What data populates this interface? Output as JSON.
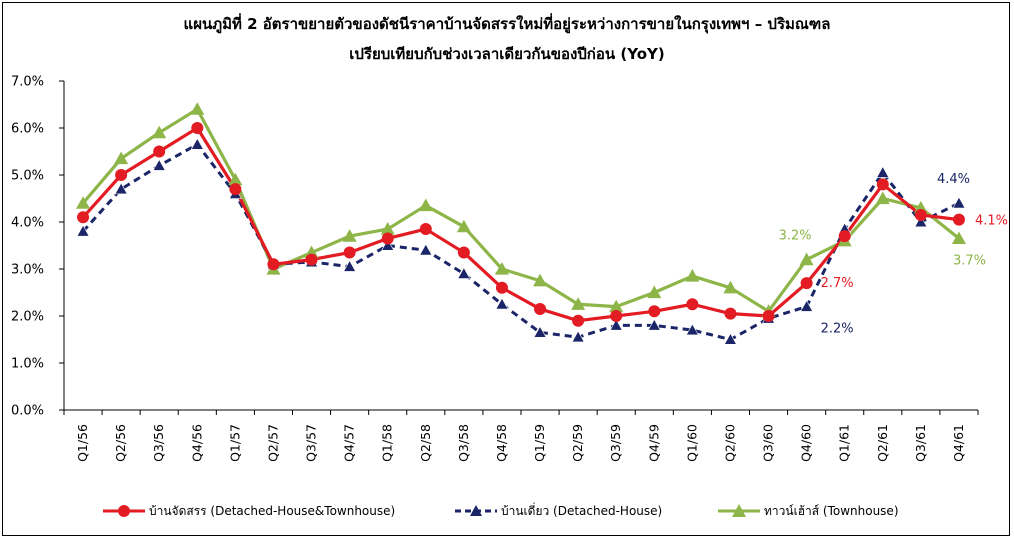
{
  "chart_data": {
    "type": "line",
    "title": "แผนภูมิที่ 2 อัตราขยายตัวของดัชนีราคาบ้านจัดสรรใหม่ที่อยู่ระหว่างการขายในกรุงเทพฯ – ปริมณฑล",
    "subtitle": "เปรียบเทียบกับช่วงเวลาเดียวกันของปีก่อน (YoY)",
    "categories": [
      "Q1/56",
      "Q2/56",
      "Q3/56",
      "Q4/56",
      "Q1/57",
      "Q2/57",
      "Q3/57",
      "Q4/57",
      "Q1/58",
      "Q2/58",
      "Q3/58",
      "Q4/58",
      "Q1/59",
      "Q2/59",
      "Q3/59",
      "Q4/59",
      "Q1/60",
      "Q2/60",
      "Q3/60",
      "Q4/60",
      "Q1/61",
      "Q2/61",
      "Q3/61",
      "Q4/61"
    ],
    "y_ticks": [
      "0.0%",
      "1.0%",
      "2.0%",
      "3.0%",
      "4.0%",
      "5.0%",
      "6.0%",
      "7.0%"
    ],
    "ylim": [
      0,
      7
    ],
    "grid": false,
    "legend_position": "bottom",
    "series": [
      {
        "name": "บ้านจัดสรร (Detached-House&Townhouse)",
        "color": "#e31b23",
        "style": "solid",
        "marker": "circle",
        "values": [
          4.1,
          5.0,
          5.5,
          6.0,
          4.7,
          3.1,
          3.2,
          3.35,
          3.65,
          3.85,
          3.35,
          2.6,
          2.15,
          1.9,
          2.0,
          2.1,
          2.25,
          2.05,
          2.0,
          2.7,
          3.7,
          4.8,
          4.15,
          4.05
        ]
      },
      {
        "name": "บ้านเดี่ยว (Detached-House)",
        "color": "#1b2567",
        "style": "dashed",
        "marker": "triangle",
        "values": [
          3.8,
          4.7,
          5.2,
          5.65,
          4.6,
          3.1,
          3.15,
          3.05,
          3.5,
          3.4,
          2.9,
          2.25,
          1.65,
          1.55,
          1.8,
          1.8,
          1.7,
          1.5,
          1.95,
          2.2,
          3.85,
          5.05,
          4.0,
          4.4
        ]
      },
      {
        "name": "ทาวน์เฮ้าส์ (Townhouse)",
        "color": "#8db548",
        "style": "solid",
        "marker": "triangle",
        "values": [
          4.4,
          5.35,
          5.9,
          6.4,
          4.9,
          3.0,
          3.35,
          3.7,
          3.85,
          4.35,
          3.9,
          3.0,
          2.75,
          2.25,
          2.2,
          2.5,
          2.85,
          2.6,
          2.1,
          3.2,
          3.6,
          4.5,
          4.3,
          3.65
        ]
      }
    ],
    "annotations": [
      {
        "series": 2,
        "index": 19,
        "text": "3.2%",
        "color": "#8db548"
      },
      {
        "series": 0,
        "index": 19,
        "text": "2.7%",
        "color": "#e31b23"
      },
      {
        "series": 1,
        "index": 19,
        "text": "2.2%",
        "color": "#1b2567"
      },
      {
        "series": 1,
        "index": 23,
        "text": "4.4%",
        "color": "#1b2567"
      },
      {
        "series": 0,
        "index": 23,
        "text": "4.1%",
        "color": "#e31b23"
      },
      {
        "series": 2,
        "index": 23,
        "text": "3.7%",
        "color": "#8db548"
      }
    ]
  }
}
